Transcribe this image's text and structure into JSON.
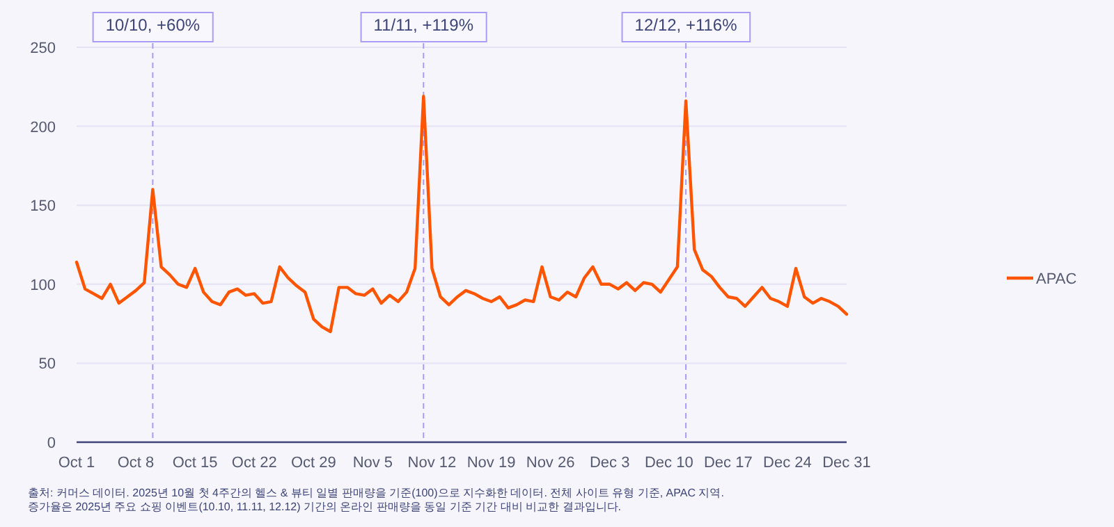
{
  "chart_data": {
    "type": "line",
    "x": [
      "2025-10-01",
      "2025-10-02",
      "2025-10-03",
      "2025-10-04",
      "2025-10-05",
      "2025-10-06",
      "2025-10-07",
      "2025-10-08",
      "2025-10-09",
      "2025-10-10",
      "2025-10-11",
      "2025-10-12",
      "2025-10-13",
      "2025-10-14",
      "2025-10-15",
      "2025-10-16",
      "2025-10-17",
      "2025-10-18",
      "2025-10-19",
      "2025-10-20",
      "2025-10-21",
      "2025-10-22",
      "2025-10-23",
      "2025-10-24",
      "2025-10-25",
      "2025-10-26",
      "2025-10-27",
      "2025-10-28",
      "2025-10-29",
      "2025-10-30",
      "2025-10-31",
      "2025-11-01",
      "2025-11-02",
      "2025-11-03",
      "2025-11-04",
      "2025-11-05",
      "2025-11-06",
      "2025-11-07",
      "2025-11-08",
      "2025-11-09",
      "2025-11-10",
      "2025-11-11",
      "2025-11-12",
      "2025-11-13",
      "2025-11-14",
      "2025-11-15",
      "2025-11-16",
      "2025-11-17",
      "2025-11-18",
      "2025-11-19",
      "2025-11-20",
      "2025-11-21",
      "2025-11-22",
      "2025-11-23",
      "2025-11-24",
      "2025-11-25",
      "2025-11-26",
      "2025-11-27",
      "2025-11-28",
      "2025-11-29",
      "2025-11-30",
      "2025-12-01",
      "2025-12-02",
      "2025-12-03",
      "2025-12-04",
      "2025-12-05",
      "2025-12-06",
      "2025-12-07",
      "2025-12-08",
      "2025-12-09",
      "2025-12-10",
      "2025-12-11",
      "2025-12-12",
      "2025-12-13",
      "2025-12-14",
      "2025-12-15",
      "2025-12-16",
      "2025-12-17",
      "2025-12-18",
      "2025-12-19",
      "2025-12-20",
      "2025-12-21",
      "2025-12-22",
      "2025-12-23",
      "2025-12-24",
      "2025-12-25",
      "2025-12-26",
      "2025-12-27",
      "2025-12-28",
      "2025-12-29",
      "2025-12-30",
      "2025-12-31"
    ],
    "series": [
      {
        "name": "APAC",
        "color": "#ff5500",
        "values": [
          114,
          97,
          94,
          91,
          100,
          88,
          92,
          96,
          101,
          160,
          111,
          106,
          100,
          98,
          110,
          95,
          89,
          87,
          95,
          97,
          93,
          94,
          88,
          89,
          111,
          104,
          99,
          95,
          78,
          73,
          70,
          98,
          98,
          94,
          93,
          97,
          88,
          93,
          89,
          95,
          110,
          219,
          110,
          92,
          87,
          92,
          96,
          94,
          91,
          89,
          92,
          85,
          87,
          90,
          89,
          111,
          92,
          90,
          95,
          92,
          104,
          111,
          100,
          100,
          97,
          101,
          96,
          101,
          100,
          95,
          103,
          111,
          216,
          122,
          109,
          105,
          98,
          92,
          91,
          86,
          92,
          98,
          91,
          89,
          86,
          110,
          92,
          88,
          91,
          89,
          86,
          81
        ]
      }
    ],
    "xlim": [
      "2025-10-01",
      "2025-12-31"
    ],
    "xticks": [
      {
        "value": "2025-10-01",
        "label": "Oct 1"
      },
      {
        "value": "2025-10-08",
        "label": "Oct 8"
      },
      {
        "value": "2025-10-15",
        "label": "Oct 15"
      },
      {
        "value": "2025-10-22",
        "label": "Oct 22"
      },
      {
        "value": "2025-10-29",
        "label": "Oct 29"
      },
      {
        "value": "2025-11-05",
        "label": "Nov 5"
      },
      {
        "value": "2025-11-12",
        "label": "Nov 12"
      },
      {
        "value": "2025-11-19",
        "label": "Nov 19"
      },
      {
        "value": "2025-11-26",
        "label": "Nov 26"
      },
      {
        "value": "2025-12-03",
        "label": "Dec 3"
      },
      {
        "value": "2025-12-10",
        "label": "Dec 10"
      },
      {
        "value": "2025-12-17",
        "label": "Dec 17"
      },
      {
        "value": "2025-12-24",
        "label": "Dec 24"
      },
      {
        "value": "2025-12-31",
        "label": "Dec 31"
      }
    ],
    "ylim": [
      0,
      250
    ],
    "yticks": [
      0,
      50,
      100,
      150,
      200,
      250
    ],
    "grid": "y",
    "legend": "right",
    "ref_lines": [
      {
        "axis": "x",
        "value": "2025-10-10",
        "label": "10/10, +60%",
        "color": "#a99cf5",
        "line_style": "dashed"
      },
      {
        "axis": "x",
        "value": "2025-11-11",
        "label": "11/11, +119%",
        "color": "#a99cf5",
        "line_style": "dashed"
      },
      {
        "axis": "x",
        "value": "2025-12-12",
        "label": "12/12, +116%",
        "color": "#a99cf5",
        "line_style": "dashed"
      }
    ],
    "annotations": [
      "출처: 커머스 데이터. 2025년 10월 첫 4주간의 헬스 & 뷰티 일별 판매량을 기준(100)으로 지수화한 데이터. 전체 사이트 유형 기준, APAC 지역.",
      "증가율은 2025년 주요 쇼핑 이벤트(10.10, 11.11, 12.12) 기간의 온라인 판매량을 동일 기준 기간 대비 비교한 결과입니다."
    ]
  }
}
